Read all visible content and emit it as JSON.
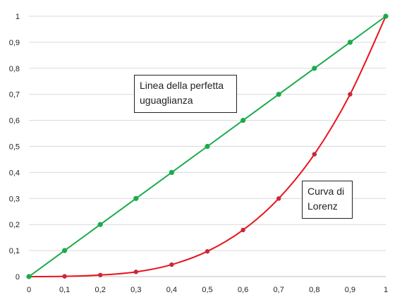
{
  "chart_data": {
    "type": "line",
    "x": [
      0,
      0.1,
      0.2,
      0.3,
      0.4,
      0.5,
      0.6,
      0.7,
      0.8,
      0.9,
      1
    ],
    "series": [
      {
        "name": "Linea della perfetta uguaglianza",
        "color": "#1aab4b",
        "values": [
          0,
          0.1,
          0.2,
          0.3,
          0.4,
          0.5,
          0.6,
          0.7,
          0.8,
          0.9,
          1
        ]
      },
      {
        "name": "Curva di Lorenz",
        "color": "#e8141c",
        "marker_color": "#c8283c",
        "values": [
          0,
          0.001,
          0.006,
          0.018,
          0.046,
          0.097,
          0.179,
          0.3,
          0.47,
          0.7,
          1
        ]
      }
    ],
    "xlim": [
      0,
      1
    ],
    "ylim": [
      0,
      1
    ],
    "x_tick_labels": [
      "0",
      "0,1",
      "0,2",
      "0,3",
      "0,4",
      "0,5",
      "0,6",
      "0,7",
      "0,8",
      "0,9",
      "1"
    ],
    "y_tick_labels": [
      "0",
      "0,1",
      "0,2",
      "0,3",
      "0,4",
      "0,5",
      "0,6",
      "0,7",
      "0,8",
      "0,9",
      "1"
    ],
    "grid": "horizontal",
    "grid_color": "#d9d9d9",
    "title": "",
    "xlabel": "",
    "ylabel": ""
  },
  "annotations": {
    "equality": {
      "line1": "Linea della perfetta",
      "line2": "uguaglianza"
    },
    "lorenz": {
      "line1": "Curva di",
      "line2": "Lorenz"
    }
  }
}
